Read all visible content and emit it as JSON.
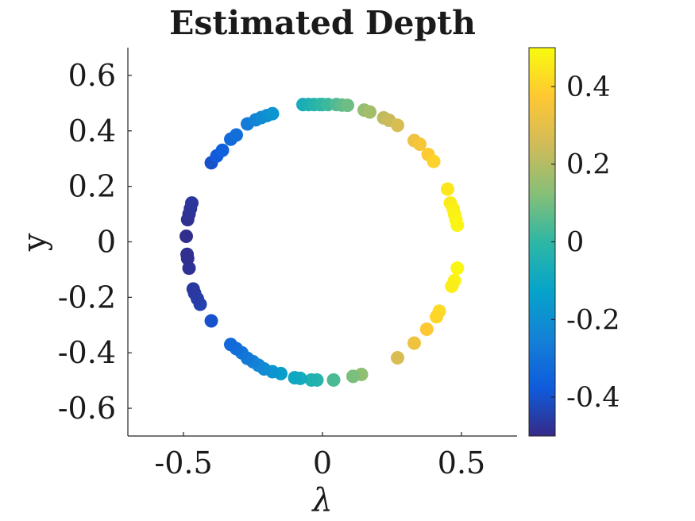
{
  "chart_data": {
    "type": "scatter",
    "title": "Estimated Depth",
    "xlabel": "λ",
    "ylabel": "y",
    "xlim": [
      -0.7,
      0.7
    ],
    "ylim": [
      -0.7,
      0.7
    ],
    "xticks": [
      -0.5,
      0,
      0.5
    ],
    "xtick_labels": [
      "-0.5",
      "0",
      "0.5"
    ],
    "yticks": [
      0.6,
      0.4,
      0.2,
      0,
      -0.2,
      -0.4,
      -0.6
    ],
    "ytick_labels": [
      "0.6",
      "0.4",
      "0.2",
      "0",
      "-0.2",
      "-0.4",
      "-0.6"
    ],
    "grid": false,
    "colorbar": {
      "label": "",
      "range": [
        -0.5,
        0.5
      ],
      "ticks": [
        0.4,
        0.2,
        0,
        -0.2,
        -0.4
      ],
      "tick_labels": [
        "0.4",
        "0.2",
        "0",
        "-0.2",
        "-0.4"
      ],
      "colormap": "parula",
      "colormap_stops": [
        "#352A87",
        "#0F5CDD",
        "#1481D6",
        "#06A4CA",
        "#2EB7A4",
        "#87BF77",
        "#D1BB59",
        "#FEC832",
        "#F9FB0E"
      ]
    },
    "points": [
      {
        "x": -0.07,
        "y": 0.495,
        "c": -0.07
      },
      {
        "x": -0.05,
        "y": 0.495,
        "c": -0.05
      },
      {
        "x": -0.03,
        "y": 0.495,
        "c": -0.03
      },
      {
        "x": -0.01,
        "y": 0.495,
        "c": -0.01
      },
      {
        "x": 0.0,
        "y": 0.495,
        "c": 0.0
      },
      {
        "x": 0.02,
        "y": 0.495,
        "c": 0.02
      },
      {
        "x": 0.05,
        "y": 0.495,
        "c": 0.05
      },
      {
        "x": 0.07,
        "y": 0.493,
        "c": 0.07
      },
      {
        "x": 0.09,
        "y": 0.492,
        "c": 0.09
      },
      {
        "x": 0.15,
        "y": 0.475,
        "c": 0.15
      },
      {
        "x": 0.17,
        "y": 0.468,
        "c": 0.17
      },
      {
        "x": 0.22,
        "y": 0.447,
        "c": 0.22
      },
      {
        "x": 0.24,
        "y": 0.438,
        "c": 0.24
      },
      {
        "x": 0.27,
        "y": 0.42,
        "c": 0.27
      },
      {
        "x": 0.33,
        "y": 0.365,
        "c": 0.33
      },
      {
        "x": 0.35,
        "y": 0.352,
        "c": 0.35
      },
      {
        "x": 0.38,
        "y": 0.315,
        "c": 0.38
      },
      {
        "x": 0.4,
        "y": 0.29,
        "c": 0.4
      },
      {
        "x": 0.45,
        "y": 0.19,
        "c": 0.45
      },
      {
        "x": 0.46,
        "y": 0.14,
        "c": 0.46
      },
      {
        "x": 0.47,
        "y": 0.12,
        "c": 0.47
      },
      {
        "x": 0.475,
        "y": 0.1,
        "c": 0.475
      },
      {
        "x": 0.48,
        "y": 0.08,
        "c": 0.48
      },
      {
        "x": 0.485,
        "y": 0.06,
        "c": 0.485
      },
      {
        "x": 0.485,
        "y": -0.095,
        "c": 0.485
      },
      {
        "x": 0.475,
        "y": -0.14,
        "c": 0.475
      },
      {
        "x": 0.465,
        "y": -0.16,
        "c": 0.465
      },
      {
        "x": 0.42,
        "y": -0.25,
        "c": 0.42
      },
      {
        "x": 0.41,
        "y": -0.27,
        "c": 0.41
      },
      {
        "x": 0.375,
        "y": -0.315,
        "c": 0.375
      },
      {
        "x": 0.33,
        "y": -0.365,
        "c": 0.33
      },
      {
        "x": 0.27,
        "y": -0.418,
        "c": 0.27
      },
      {
        "x": 0.14,
        "y": -0.478,
        "c": 0.14
      },
      {
        "x": 0.11,
        "y": -0.485,
        "c": 0.11
      },
      {
        "x": 0.04,
        "y": -0.498,
        "c": 0.04
      },
      {
        "x": -0.02,
        "y": -0.498,
        "c": -0.02
      },
      {
        "x": -0.04,
        "y": -0.498,
        "c": -0.04
      },
      {
        "x": -0.08,
        "y": -0.492,
        "c": -0.08
      },
      {
        "x": -0.1,
        "y": -0.49,
        "c": -0.1
      },
      {
        "x": -0.15,
        "y": -0.475,
        "c": -0.15
      },
      {
        "x": -0.18,
        "y": -0.468,
        "c": -0.18
      },
      {
        "x": -0.21,
        "y": -0.458,
        "c": -0.21
      },
      {
        "x": -0.23,
        "y": -0.445,
        "c": -0.23
      },
      {
        "x": -0.25,
        "y": -0.432,
        "c": -0.25
      },
      {
        "x": -0.27,
        "y": -0.42,
        "c": -0.27
      },
      {
        "x": -0.29,
        "y": -0.4,
        "c": -0.29
      },
      {
        "x": -0.31,
        "y": -0.385,
        "c": -0.31
      },
      {
        "x": -0.33,
        "y": -0.37,
        "c": -0.33
      },
      {
        "x": -0.4,
        "y": -0.285,
        "c": -0.4
      },
      {
        "x": -0.44,
        "y": -0.225,
        "c": -0.44
      },
      {
        "x": -0.45,
        "y": -0.205,
        "c": -0.45
      },
      {
        "x": -0.46,
        "y": -0.185,
        "c": -0.46
      },
      {
        "x": -0.465,
        "y": -0.17,
        "c": -0.465
      },
      {
        "x": -0.48,
        "y": -0.095,
        "c": -0.48
      },
      {
        "x": -0.485,
        "y": -0.06,
        "c": -0.485
      },
      {
        "x": -0.487,
        "y": -0.045,
        "c": -0.487
      },
      {
        "x": -0.49,
        "y": 0.02,
        "c": -0.49
      },
      {
        "x": -0.485,
        "y": 0.08,
        "c": -0.485
      },
      {
        "x": -0.48,
        "y": 0.1,
        "c": -0.48
      },
      {
        "x": -0.475,
        "y": 0.12,
        "c": -0.475
      },
      {
        "x": -0.47,
        "y": 0.14,
        "c": -0.47
      },
      {
        "x": -0.4,
        "y": 0.285,
        "c": -0.4
      },
      {
        "x": -0.38,
        "y": 0.31,
        "c": -0.38
      },
      {
        "x": -0.36,
        "y": 0.33,
        "c": -0.36
      },
      {
        "x": -0.33,
        "y": 0.37,
        "c": -0.33
      },
      {
        "x": -0.31,
        "y": 0.385,
        "c": -0.31
      },
      {
        "x": -0.27,
        "y": 0.425,
        "c": -0.27
      },
      {
        "x": -0.24,
        "y": 0.44,
        "c": -0.24
      },
      {
        "x": -0.22,
        "y": 0.448,
        "c": -0.22
      },
      {
        "x": -0.2,
        "y": 0.455,
        "c": -0.2
      },
      {
        "x": -0.18,
        "y": 0.462,
        "c": -0.18
      }
    ]
  }
}
